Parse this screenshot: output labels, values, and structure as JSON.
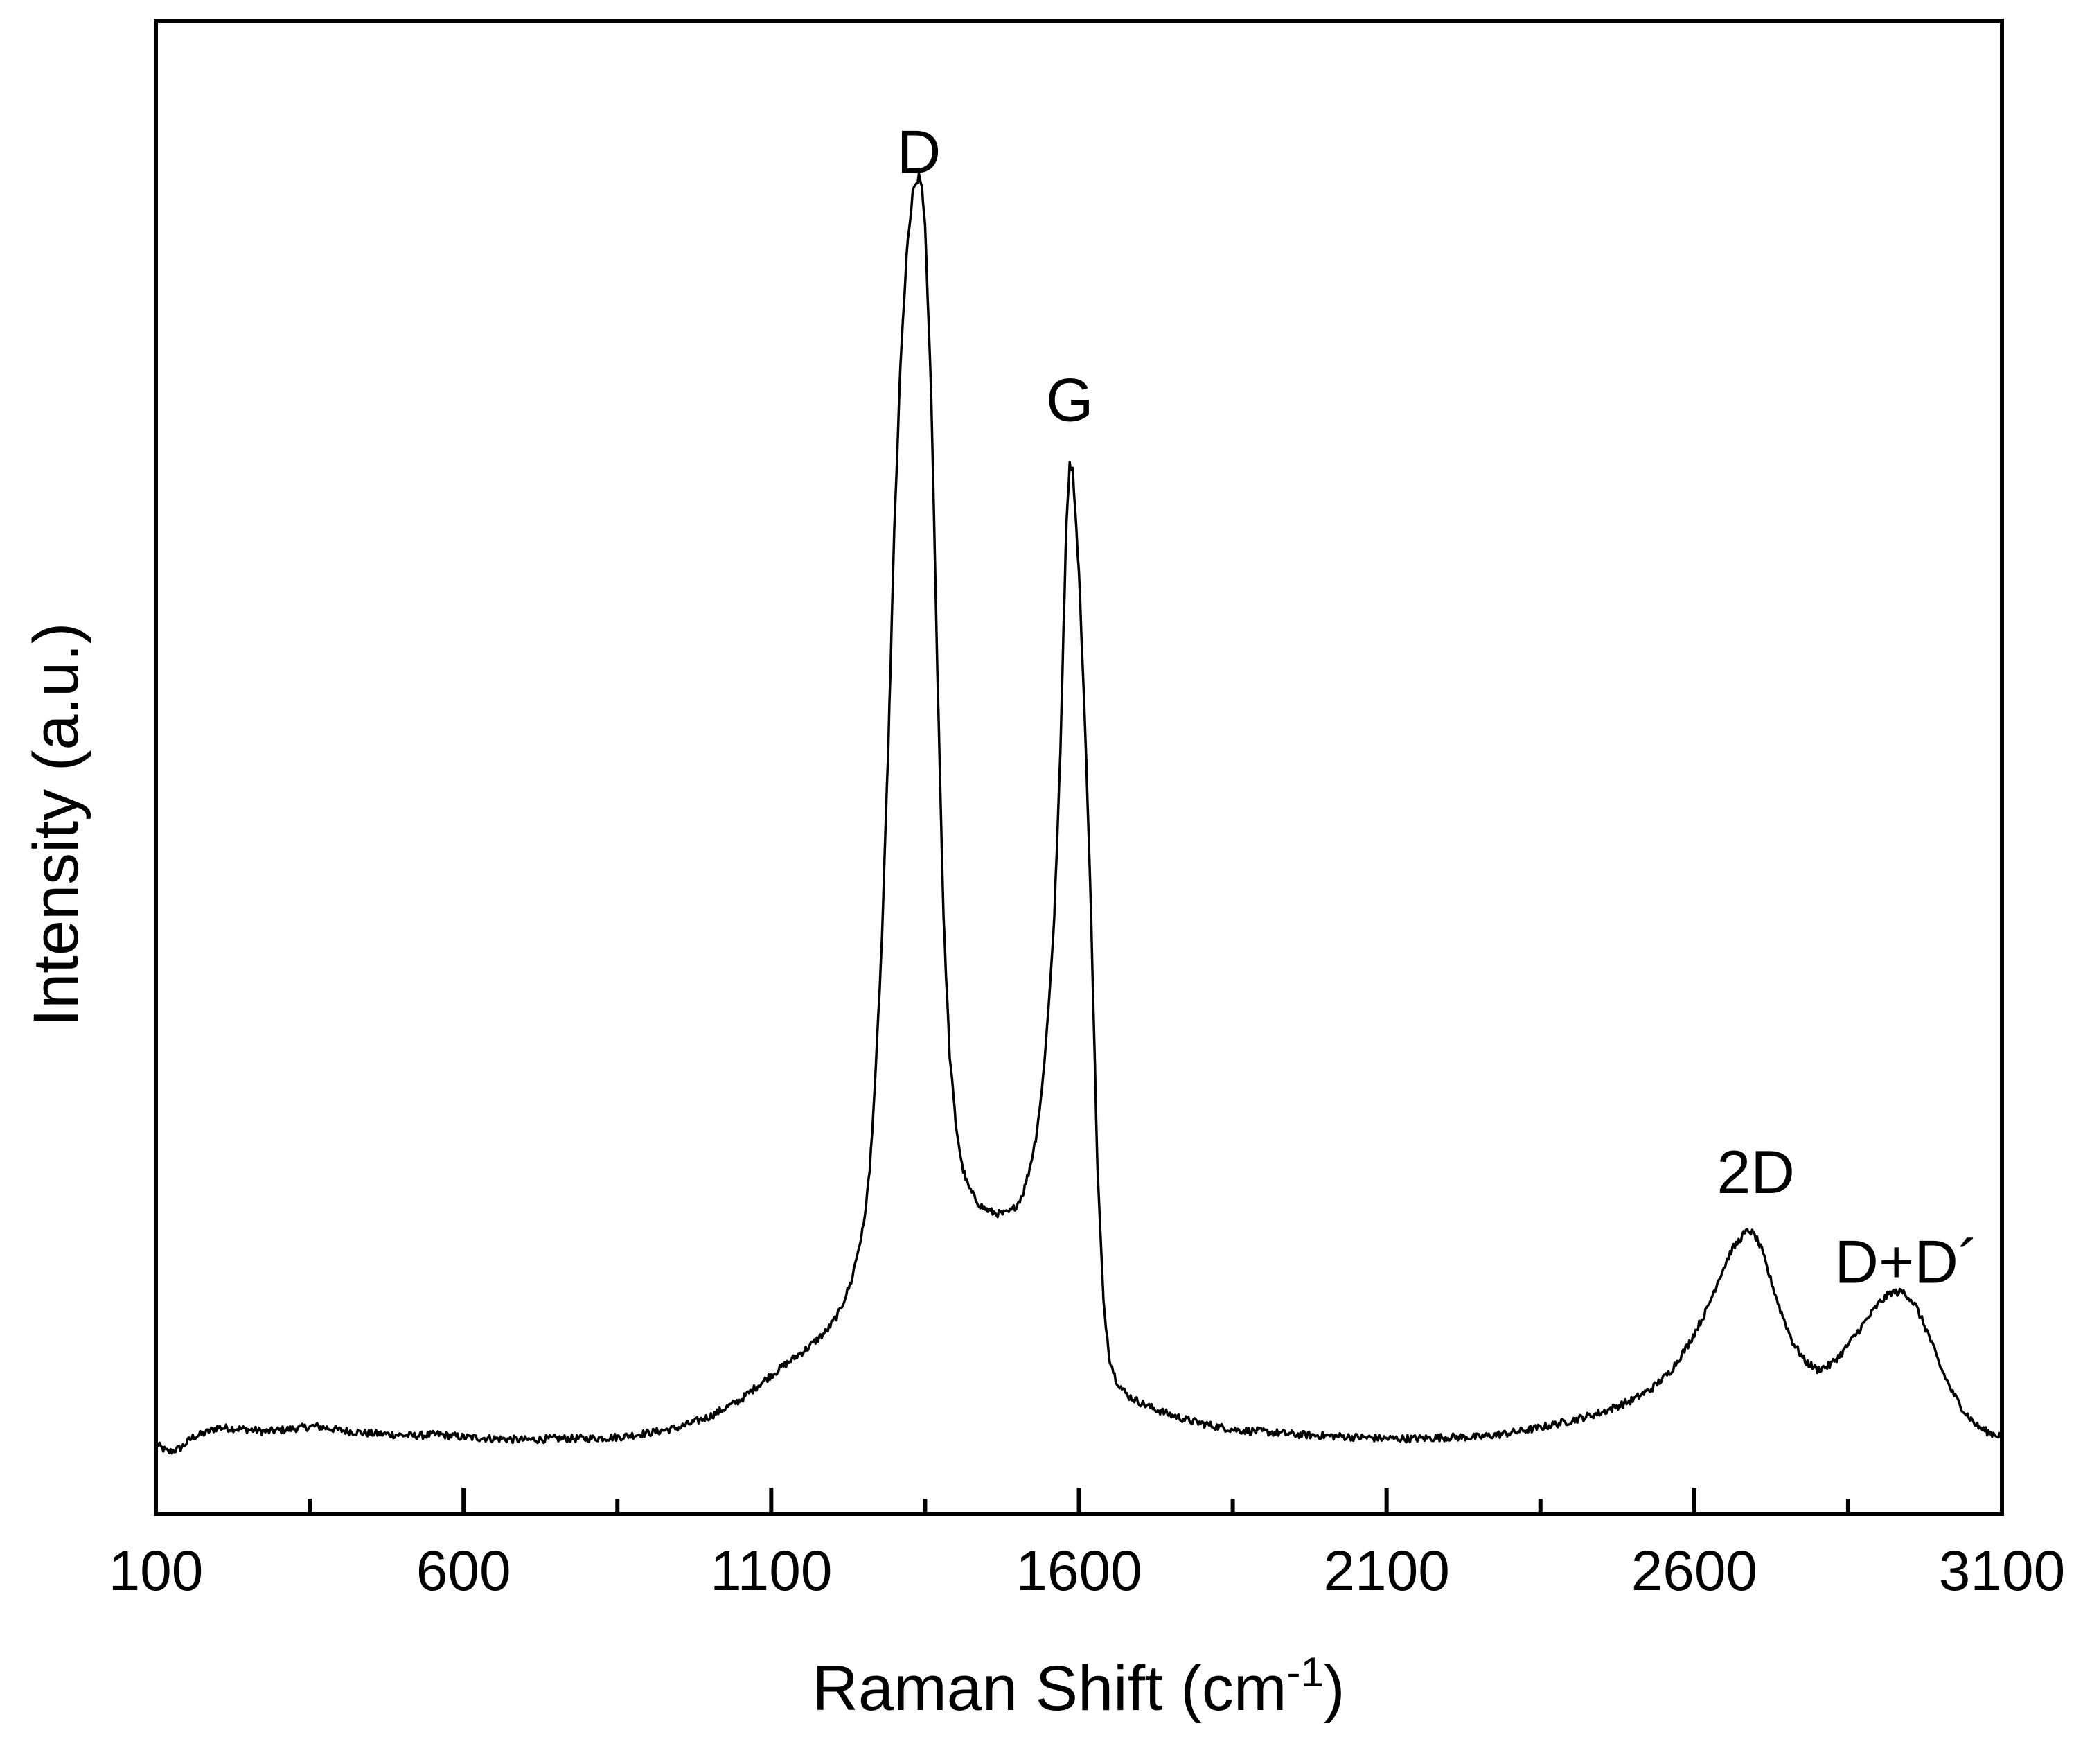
{
  "chart_data": {
    "type": "line",
    "title": "",
    "xlabel": "Raman Shift (cm",
    "xlabel_sup": "-1",
    "xlabel_close": ")",
    "ylabel": "Intensity (a.u.)",
    "xlim": [
      100,
      3100
    ],
    "ylim": [
      0,
      100
    ],
    "y_ticks_labeled": false,
    "x_ticks": [
      "100",
      "600",
      "1100",
      "1600",
      "2100",
      "2600",
      "3100"
    ],
    "x_minor_ticks": [
      350,
      850,
      1350,
      1850,
      2350,
      2850
    ],
    "grid": false,
    "legend": "none",
    "line_color": "#000000",
    "annotations": [
      {
        "text": "D",
        "x": 1340,
        "y": 94
      },
      {
        "text": "G",
        "x": 1585,
        "y": 76
      },
      {
        "text": "2D",
        "x": 2700,
        "y": 20
      },
      {
        "text": "D+D´",
        "x": 2945,
        "y": 13.5
      }
    ],
    "series": [
      {
        "values_description": "Raman spectrum",
        "x": [
          100,
          120,
          140,
          160,
          180,
          200,
          240,
          280,
          320,
          360,
          400,
          440,
          480,
          520,
          560,
          600,
          650,
          700,
          750,
          800,
          850,
          900,
          950,
          1000,
          1050,
          1080,
          1100,
          1130,
          1160,
          1190,
          1210,
          1230,
          1250,
          1260,
          1270,
          1280,
          1290,
          1300,
          1310,
          1320,
          1330,
          1340,
          1345,
          1350,
          1360,
          1370,
          1380,
          1390,
          1400,
          1410,
          1420,
          1430,
          1440,
          1450,
          1460,
          1470,
          1480,
          1490,
          1500,
          1510,
          1520,
          1530,
          1540,
          1550,
          1560,
          1570,
          1575,
          1580,
          1585,
          1590,
          1600,
          1610,
          1620,
          1630,
          1640,
          1650,
          1660,
          1670,
          1680,
          1700,
          1720,
          1750,
          1780,
          1820,
          1860,
          1900,
          1950,
          2000,
          2050,
          2100,
          2150,
          2200,
          2250,
          2300,
          2350,
          2400,
          2450,
          2500,
          2530,
          2560,
          2590,
          2620,
          2640,
          2660,
          2680,
          2690,
          2700,
          2710,
          2720,
          2740,
          2760,
          2780,
          2800,
          2820,
          2840,
          2860,
          2880,
          2900,
          2920,
          2940,
          2950,
          2960,
          2980,
          3000,
          3020,
          3040,
          3060,
          3080,
          3100
        ],
        "y": [
          1.8,
          1.2,
          1.5,
          2.3,
          2.6,
          3.0,
          2.9,
          2.7,
          2.9,
          3.1,
          2.8,
          2.6,
          2.5,
          2.4,
          2.5,
          2.3,
          2.2,
          2.1,
          2.2,
          2.2,
          2.3,
          2.6,
          3.0,
          3.8,
          5.0,
          6.1,
          6.8,
          7.8,
          8.8,
          10.0,
          11.3,
          13.6,
          17.6,
          21.6,
          29.0,
          38.5,
          52.0,
          68.0,
          80.0,
          88.0,
          92.5,
          93.7,
          93.0,
          90.0,
          78.0,
          58.0,
          40.0,
          30.0,
          25.0,
          22.0,
          20.5,
          19.7,
          19.1,
          18.8,
          18.6,
          18.5,
          18.5,
          18.7,
          19.2,
          20.1,
          21.8,
          24.0,
          27.5,
          33.0,
          40.0,
          52.0,
          61.0,
          69.0,
          72.8,
          72.5,
          65.0,
          54.0,
          40.0,
          22.0,
          12.0,
          8.0,
          6.5,
          5.8,
          5.3,
          4.8,
          4.4,
          3.9,
          3.5,
          3.1,
          2.8,
          2.7,
          2.5,
          2.4,
          2.3,
          2.2,
          2.2,
          2.3,
          2.3,
          2.6,
          3.0,
          3.5,
          4.1,
          5.0,
          5.8,
          7.0,
          9.0,
          11.5,
          13.8,
          15.8,
          17.0,
          17.3,
          16.8,
          15.8,
          14.3,
          11.5,
          9.2,
          7.8,
          7.2,
          7.5,
          8.4,
          9.6,
          10.8,
          12.0,
          12.8,
          12.8,
          12.4,
          11.8,
          9.8,
          7.4,
          5.5,
          4.1,
          3.1,
          2.6,
          2.4
        ]
      }
    ]
  }
}
